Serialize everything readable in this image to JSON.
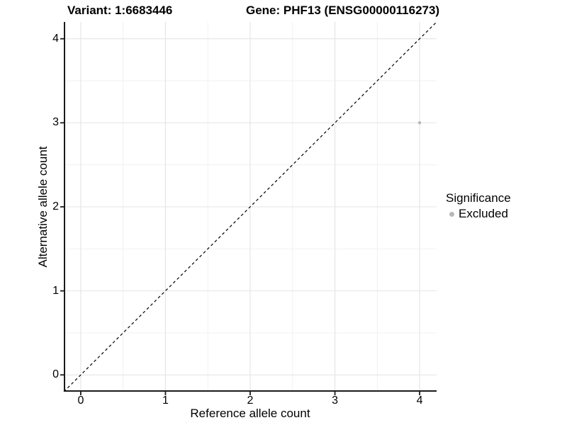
{
  "titles": {
    "variant": "Variant: 1:6683446",
    "gene": "Gene: PHF13 (ENSG00000116273)"
  },
  "axes": {
    "x_label": "Reference allele count",
    "y_label": "Alternative allele count"
  },
  "legend": {
    "title": "Significance",
    "entries": [
      {
        "label": "Excluded",
        "color": "#b8b8b8"
      }
    ]
  },
  "colors": {
    "background": "#ffffff",
    "axis": "#1a1a1a",
    "text": "#000000",
    "grid_major": "#e4e4e4",
    "grid_minor": "#efefef",
    "identity_line": "#000000",
    "point": "#b8b8b8"
  },
  "chart_data": {
    "type": "scatter",
    "title": "Variant: 1:6683446   Gene: PHF13 (ENSG00000116273)",
    "xlabel": "Reference allele count",
    "ylabel": "Alternative allele count",
    "xlim": [
      -0.2,
      4.2
    ],
    "ylim": [
      -0.2,
      4.2
    ],
    "xticks": [
      0,
      1,
      2,
      3,
      4
    ],
    "yticks": [
      0,
      1,
      2,
      3,
      4
    ],
    "minor_ticks": [
      0.5,
      1.5,
      2.5,
      3.5
    ],
    "grid": true,
    "legend_title": "Significance",
    "legend_position": "right",
    "series": [
      {
        "name": "Excluded",
        "color": "#b8b8b8",
        "points": [
          {
            "x": 4,
            "y": 3
          }
        ]
      }
    ],
    "reference_line": {
      "type": "identity",
      "style": "dashed",
      "color": "#000000",
      "from": [
        -0.2,
        -0.2
      ],
      "to": [
        4.2,
        4.2
      ]
    }
  }
}
